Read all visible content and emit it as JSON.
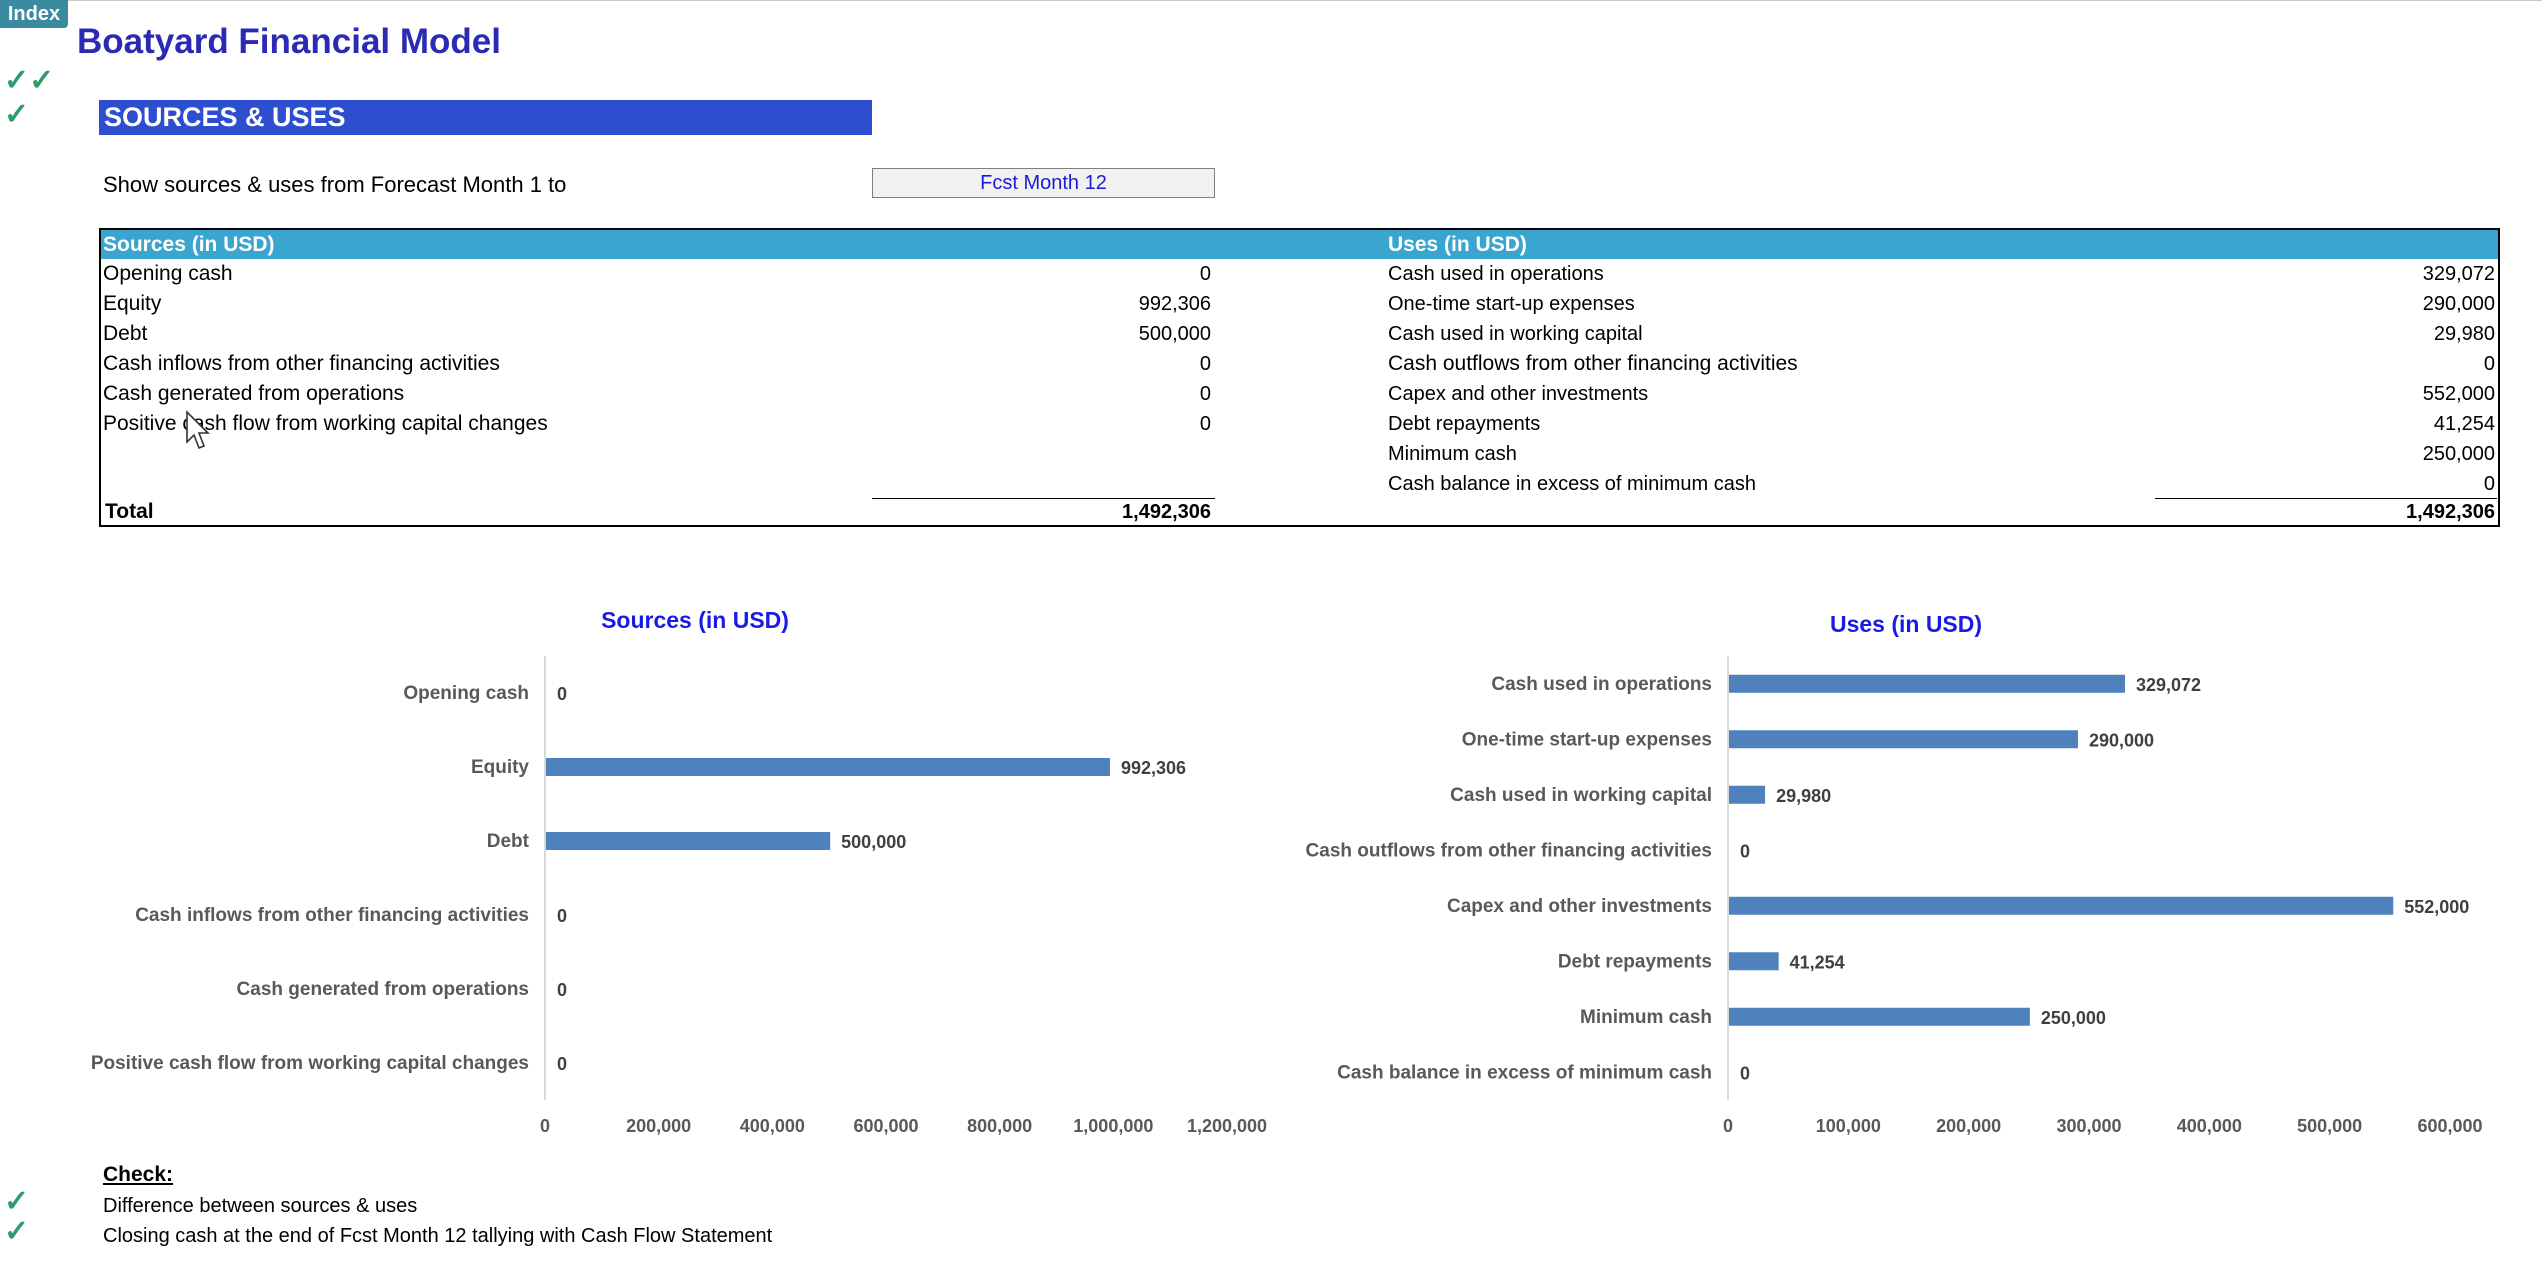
{
  "index_button": "Index",
  "title": "Boatyard Financial Model",
  "section_title": "SOURCES & USES",
  "period": {
    "label": "Show sources & uses from Forecast Month 1 to",
    "selected": "Fcst Month 12"
  },
  "sources": {
    "header": "Sources (in USD)",
    "rows": [
      {
        "label": "Opening cash",
        "value": "0"
      },
      {
        "label": "Equity",
        "value": "992,306"
      },
      {
        "label": "Debt",
        "value": "500,000"
      },
      {
        "label": "Cash inflows from other financing activities",
        "value": "0"
      },
      {
        "label": "Cash generated from operations",
        "value": "0"
      },
      {
        "label": "Positive cash flow from working capital changes",
        "value": "0"
      }
    ],
    "total_label": "Total",
    "total_value": "1,492,306"
  },
  "uses": {
    "header": "Uses (in USD)",
    "rows": [
      {
        "label": "Cash used in operations",
        "value": "329,072"
      },
      {
        "label": "One-time start-up expenses",
        "value": "290,000"
      },
      {
        "label": "Cash used in working capital",
        "value": "29,980"
      },
      {
        "label": "Cash outflows from other  financing activities",
        "value": "0"
      },
      {
        "label": "Capex and other investments",
        "value": "552,000"
      },
      {
        "label": "Debt repayments",
        "value": "41,254"
      },
      {
        "label": "Minimum cash",
        "value": "250,000"
      },
      {
        "label": "Cash balance in excess of minimum cash",
        "value": "0"
      }
    ],
    "total_value": "1,492,306"
  },
  "chart_data": [
    {
      "type": "bar",
      "orientation": "horizontal",
      "title": "Sources (in USD)",
      "categories": [
        "Opening cash",
        "Equity",
        "Debt",
        "Cash inflows from other financing activities",
        "Cash generated from operations",
        "Positive cash flow from working capital changes"
      ],
      "values": [
        0,
        992306,
        500000,
        0,
        0,
        0
      ],
      "value_labels": [
        "0",
        "992,306",
        "500,000",
        "0",
        "0",
        "0"
      ],
      "xlim": [
        0,
        1200000
      ],
      "ticks": [
        "0",
        "200,000",
        "400,000",
        "600,000",
        "800,000",
        "1,000,000",
        "1,200,000"
      ],
      "grid": false,
      "bar_color": "#4f81bd"
    },
    {
      "type": "bar",
      "orientation": "horizontal",
      "title": "Uses (in USD)",
      "categories": [
        "Cash used in operations",
        "One-time start-up expenses",
        "Cash used in working capital",
        "Cash outflows from other  financing activities",
        "Capex and other investments",
        "Debt repayments",
        "Minimum cash",
        "Cash balance in excess of minimum cash"
      ],
      "values": [
        329072,
        290000,
        29980,
        0,
        552000,
        41254,
        250000,
        0
      ],
      "value_labels": [
        "329,072",
        "290,000",
        "29,980",
        "0",
        "552,000",
        "41,254",
        "250,000",
        "0"
      ],
      "xlim": [
        0,
        600000
      ],
      "ticks": [
        "0",
        "100,000",
        "200,000",
        "300,000",
        "400,000",
        "500,000",
        "600,000"
      ],
      "grid": false,
      "bar_color": "#4f81bd"
    }
  ],
  "check": {
    "title": "Check:",
    "items": [
      "Difference between sources & uses",
      "Closing cash at the end of Fcst Month 12 tallying with Cash Flow Statement"
    ]
  },
  "colors": {
    "title": "#2a2ab4",
    "section_bar": "#2d4fcf",
    "table_header": "#3aa6cf",
    "check_mark": "#2e9d6a",
    "chart_title": "#1a1ae6"
  }
}
